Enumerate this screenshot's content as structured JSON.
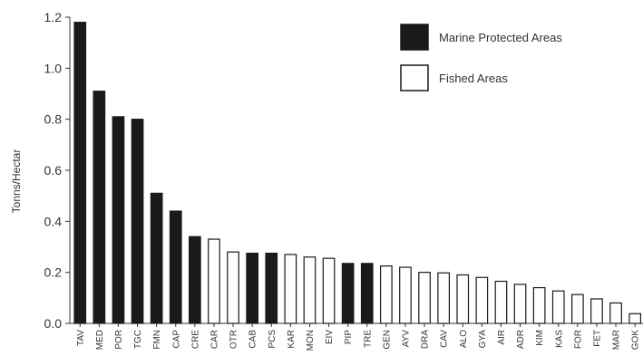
{
  "chart_data": {
    "type": "bar",
    "title": "",
    "xlabel": "",
    "ylabel": "Tonns/Hectar",
    "ylim": [
      0,
      1.2
    ],
    "yticks": [
      0.0,
      0.2,
      0.4,
      0.6,
      0.8,
      1.0,
      1.2
    ],
    "ytick_labels": [
      "0.0",
      "0.2",
      "0.4",
      "0.6",
      "0.8",
      "1.0",
      "1.2"
    ],
    "grid": false,
    "legend_position": "top-right",
    "legend": [
      {
        "label": "Marine Protected Areas",
        "fill": "#1a1a1a"
      },
      {
        "label": "Fished Areas",
        "fill": "#ffffff"
      }
    ],
    "categories": [
      "TAV",
      "MED",
      "POR",
      "TGC",
      "FMN",
      "CAP",
      "CRE",
      "CAR",
      "OTR",
      "CAB",
      "PCS",
      "KAR",
      "MON",
      "EIV",
      "PIP",
      "TRE",
      "GEN",
      "AYV",
      "DRA",
      "CAV",
      "ALO",
      "GYA",
      "AIR",
      "ADR",
      "KIM",
      "KAS",
      "FOR",
      "FET",
      "MAR",
      "GOK"
    ],
    "values": [
      1.18,
      0.91,
      0.81,
      0.8,
      0.51,
      0.44,
      0.34,
      0.33,
      0.28,
      0.275,
      0.275,
      0.27,
      0.26,
      0.255,
      0.235,
      0.235,
      0.225,
      0.22,
      0.2,
      0.198,
      0.19,
      0.18,
      0.165,
      0.153,
      0.14,
      0.127,
      0.113,
      0.096,
      0.08,
      0.038
    ],
    "group": [
      "MPA",
      "MPA",
      "MPA",
      "MPA",
      "MPA",
      "MPA",
      "MPA",
      "Fished",
      "Fished",
      "MPA",
      "MPA",
      "Fished",
      "Fished",
      "Fished",
      "MPA",
      "MPA",
      "Fished",
      "Fished",
      "Fished",
      "Fished",
      "Fished",
      "Fished",
      "Fished",
      "Fished",
      "Fished",
      "Fished",
      "Fished",
      "Fished",
      "Fished",
      "Fished"
    ],
    "colors": {
      "MPA": "#1a1a1a",
      "Fished": "#ffffff",
      "stroke": "#1a1a1a",
      "axis": "#333333"
    }
  }
}
